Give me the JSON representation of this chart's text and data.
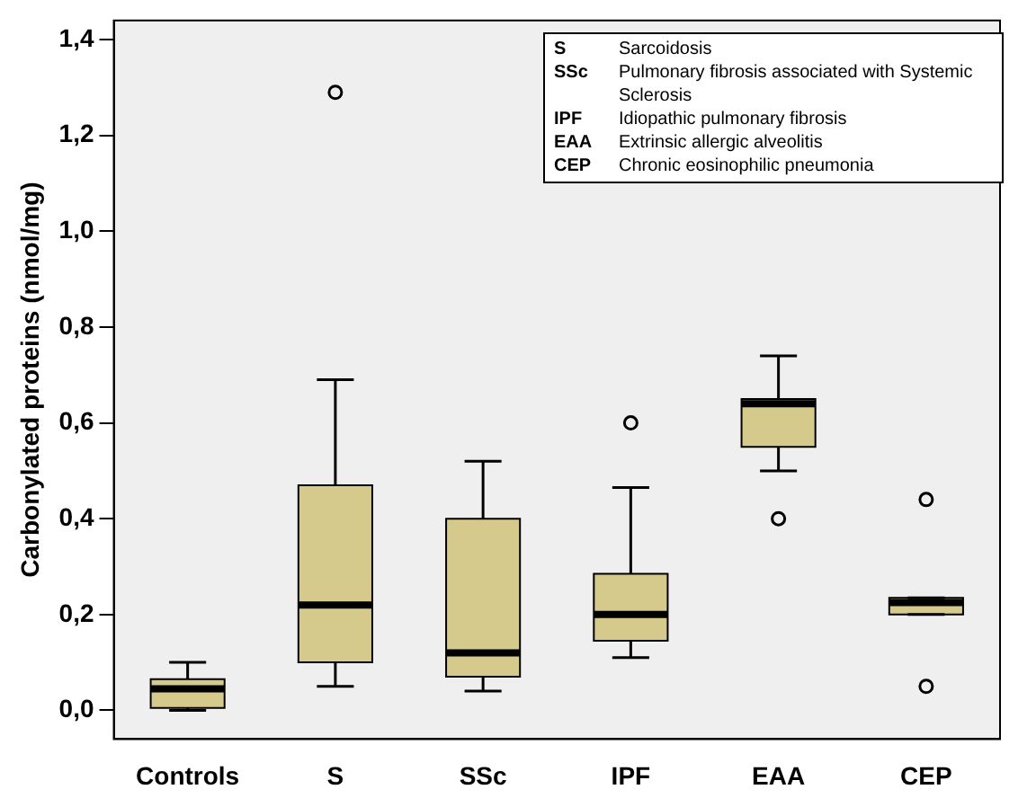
{
  "chart_data": {
    "type": "box",
    "ylabel": "Carbonylated proteins (nmol/mg)",
    "categories": [
      "Controls",
      "S",
      "SSc",
      "IPF",
      "EAA",
      "CEP"
    ],
    "color": "#d5c98c",
    "boxes": [
      {
        "low": 0,
        "q1": 0.005,
        "median": 0.045,
        "q3": 0.065,
        "high": 0.1
      },
      {
        "low": 0.05,
        "q1": 0.1,
        "median": 0.22,
        "q3": 0.47,
        "high": 0.69,
        "outliers": [
          1.29
        ]
      },
      {
        "low": 0.04,
        "q1": 0.07,
        "median": 0.12,
        "q3": 0.4,
        "high": 0.52
      },
      {
        "low": 0.11,
        "q1": 0.145,
        "median": 0.2,
        "q3": 0.285,
        "high": 0.465,
        "outliers": [
          0.6
        ]
      },
      {
        "low": 0.5,
        "q1": 0.55,
        "median": 0.64,
        "q3": 0.65,
        "high": 0.74,
        "outliers": [
          0.4
        ]
      },
      {
        "low": 0.2,
        "q1": 0.2,
        "median": 0.225,
        "q3": 0.235,
        "high": 0.235,
        "outliers": [
          0.44,
          0.05
        ]
      }
    ],
    "ylim": [
      -0.06,
      1.44
    ],
    "yticks": [
      {
        "value": 0,
        "label": "0,0"
      },
      {
        "value": 0.2,
        "label": "0,2"
      },
      {
        "value": 0.4,
        "label": "0,4"
      },
      {
        "value": 0.6,
        "label": "0,6"
      },
      {
        "value": 0.8,
        "label": "0,8"
      },
      {
        "value": 1,
        "label": "1,0"
      },
      {
        "value": 1.2,
        "label": "1,2"
      },
      {
        "value": 1.4,
        "label": "1,4"
      }
    ],
    "grid": false,
    "annotations": [
      "S Sarcoidosis",
      "SSc Pulmonary fibrosis associated with Systemic Sclerosis",
      "IPF Idiopathic pulmonary fibrosis",
      "EAA Extrinsic allergic alveolitis",
      "CEP Chronic eosinophilic pneumonia"
    ]
  }
}
